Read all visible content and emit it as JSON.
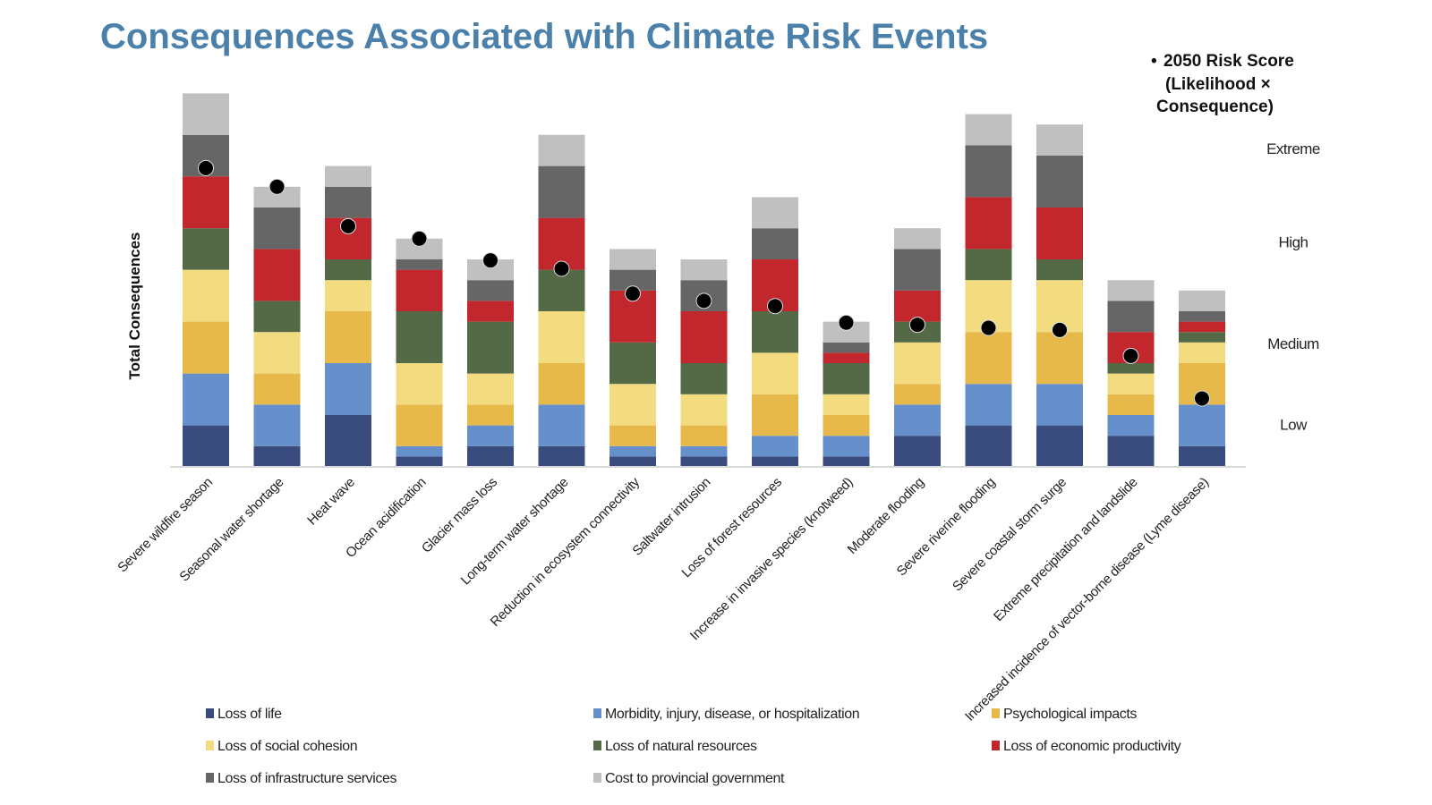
{
  "chart_data": {
    "type": "bar",
    "stacked": true,
    "title": "Consequences Associated with Climate Risk Events",
    "ylabel": "Total Consequences",
    "xlabel": "",
    "grid": false,
    "legend_position": "bottom",
    "categories": [
      "Severe wildfire season",
      "Seasonal water shortage",
      "Heat wave",
      "Ocean acidification",
      "Glacier mass loss",
      "Long-term water shortage",
      "Reduction in ecosystem connectivity",
      "Saltwater intrusion",
      "Loss of forest resources",
      "Increase in invasive species (knotweed)",
      "Moderate flooding",
      "Severe riverine flooding",
      "Severe coastal storm surge",
      "Extreme precipitation and landslide",
      "Increased incidence of vector-borne disease (Lyme disease)"
    ],
    "series": [
      {
        "name": "Loss of life",
        "color": "#3a4c7e",
        "values": [
          4,
          2,
          5,
          1,
          2,
          2,
          1,
          1,
          1,
          1,
          3,
          4,
          4,
          3,
          2
        ]
      },
      {
        "name": "Morbidity, injury, disease, or hospitalization",
        "color": "#6690cb",
        "values": [
          5,
          4,
          5,
          1,
          2,
          4,
          1,
          1,
          2,
          2,
          3,
          4,
          4,
          2,
          4
        ]
      },
      {
        "name": "Psychological impacts",
        "color": "#e7b94b",
        "values": [
          5,
          3,
          5,
          4,
          2,
          4,
          2,
          2,
          4,
          2,
          2,
          5,
          5,
          2,
          4
        ]
      },
      {
        "name": "Loss of social cohesion",
        "color": "#f3dc80",
        "values": [
          5,
          4,
          3,
          4,
          3,
          5,
          4,
          3,
          4,
          2,
          4,
          5,
          5,
          2,
          2
        ]
      },
      {
        "name": "Loss of natural resources",
        "color": "#546a47",
        "values": [
          4,
          3,
          2,
          5,
          5,
          4,
          4,
          3,
          4,
          3,
          2,
          3,
          2,
          1,
          1
        ]
      },
      {
        "name": "Loss of economic productivity",
        "color": "#c1272d",
        "values": [
          5,
          5,
          4,
          4,
          2,
          5,
          5,
          5,
          5,
          1,
          3,
          5,
          5,
          3,
          1
        ]
      },
      {
        "name": "Loss of infrastructure services",
        "color": "#666666",
        "values": [
          4,
          4,
          3,
          1,
          2,
          5,
          2,
          3,
          3,
          1,
          4,
          5,
          5,
          3,
          1
        ]
      },
      {
        "name": "Cost to provincial government",
        "color": "#c0c0c0",
        "values": [
          4,
          2,
          2,
          2,
          2,
          3,
          2,
          2,
          3,
          2,
          2,
          3,
          3,
          2,
          2
        ]
      }
    ],
    "risk_score": {
      "label_lines": [
        "2050 Risk Score",
        "(Likelihood ×",
        "Consequence)"
      ],
      "marker": "•",
      "color": "#000000",
      "values": [
        28.8,
        27.0,
        23.2,
        22.0,
        19.9,
        19.1,
        16.7,
        16.0,
        15.5,
        13.9,
        13.7,
        13.4,
        13.2,
        10.7,
        6.6
      ]
    },
    "risk_levels": [
      {
        "label": "Extreme",
        "value": 30.7
      },
      {
        "label": "High",
        "value": 21.7
      },
      {
        "label": "Medium",
        "value": 11.9
      },
      {
        "label": "Low",
        "value": 4.1
      }
    ],
    "ylim": [
      0,
      38
    ]
  }
}
